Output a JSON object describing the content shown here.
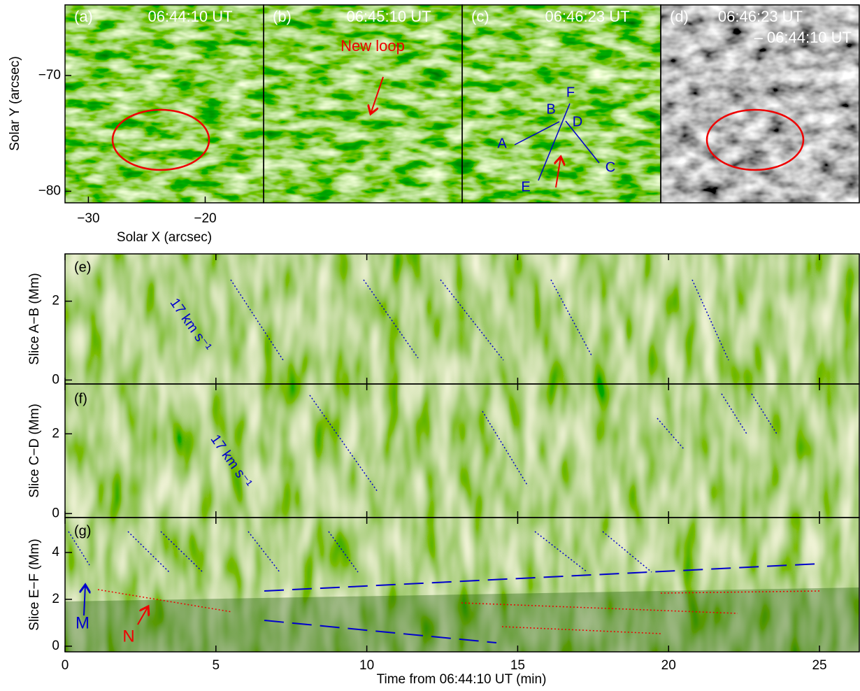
{
  "top_panels": [
    {
      "label": "(a)",
      "time": "06:44:10 UT"
    },
    {
      "label": "(b)",
      "time": "06:45:10 UT"
    },
    {
      "label": "(c)",
      "time": "06:46:23 UT"
    },
    {
      "label": "(d)",
      "time": "06:46:23 UT",
      "time2": "– 06:44:10 UT"
    }
  ],
  "top_axes": {
    "xlabel": "Solar X (arcsec)",
    "ylabel": "Solar Y (arcsec)",
    "xlim": [
      -32,
      -15
    ],
    "xticks": [
      {
        "value": -30,
        "label": "−30"
      },
      {
        "value": -20,
        "label": "−20"
      }
    ],
    "ylim": [
      -81,
      -63.9
    ],
    "yticks": [
      {
        "value": -70,
        "label": "−70"
      },
      {
        "value": -80,
        "label": "−80"
      }
    ]
  },
  "annotations": {
    "new_loop": "New loop",
    "slice_points": [
      "A",
      "B",
      "C",
      "D",
      "E",
      "F"
    ]
  },
  "slices": [
    {
      "label": "(e)",
      "ylabel": "Slice A−B (Mm)",
      "ylim": [
        -0.1,
        3.2
      ],
      "yticks": [
        0,
        2
      ],
      "speed": "17 km s⁻¹"
    },
    {
      "label": "(f)",
      "ylabel": "Slice C−D (Mm)",
      "ylim": [
        -0.1,
        3.25
      ],
      "yticks": [
        0,
        2
      ],
      "speed": "17 km s⁻¹"
    },
    {
      "label": "(g)",
      "ylabel": "Slice E−F (Mm)",
      "ylim": [
        -0.24,
        5.49
      ],
      "yticks": [
        0,
        2,
        4
      ],
      "markers": [
        "M",
        "N"
      ]
    }
  ],
  "time_axis": {
    "xlabel": "Time from 06:44:10 UT (min)",
    "xlim": [
      0,
      26.32
    ],
    "xticks": [
      0,
      5,
      10,
      15,
      20,
      25
    ]
  }
}
